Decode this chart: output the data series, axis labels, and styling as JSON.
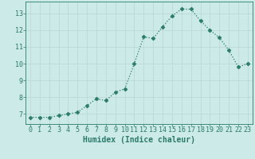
{
  "x": [
    0,
    1,
    2,
    3,
    4,
    5,
    6,
    7,
    8,
    9,
    10,
    11,
    12,
    13,
    14,
    15,
    16,
    17,
    18,
    19,
    20,
    21,
    22,
    23
  ],
  "y": [
    6.8,
    6.8,
    6.8,
    6.9,
    7.0,
    7.1,
    7.5,
    7.9,
    7.8,
    8.3,
    8.5,
    10.0,
    11.6,
    11.5,
    12.2,
    12.85,
    13.25,
    13.25,
    12.55,
    12.0,
    11.55,
    10.8,
    9.8,
    10.0
  ],
  "xlabel": "Humidex (Indice chaleur)",
  "xlim": [
    -0.5,
    23.5
  ],
  "ylim": [
    6.4,
    13.7
  ],
  "yticks": [
    7,
    8,
    9,
    10,
    11,
    12,
    13
  ],
  "xticks": [
    0,
    1,
    2,
    3,
    4,
    5,
    6,
    7,
    8,
    9,
    10,
    11,
    12,
    13,
    14,
    15,
    16,
    17,
    18,
    19,
    20,
    21,
    22,
    23
  ],
  "line_color": "#2a7a6a",
  "bg_color": "#cceae8",
  "grid_color": "#b8d8d5",
  "axis_color": "#2a7a6a",
  "label_fontsize": 7,
  "tick_fontsize": 6
}
